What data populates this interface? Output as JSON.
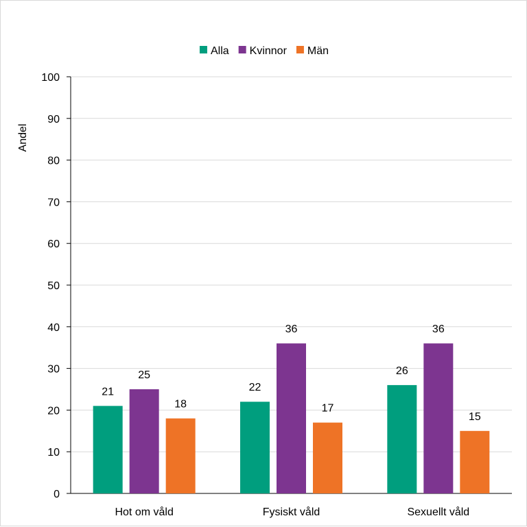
{
  "chart_data": {
    "type": "bar",
    "title": "",
    "xlabel": "",
    "ylabel": "Andel",
    "ylim": [
      0,
      100
    ],
    "yticks": [
      0,
      10,
      20,
      30,
      40,
      50,
      60,
      70,
      80,
      90,
      100
    ],
    "grid": true,
    "legend_position": "top",
    "categories": [
      "Hot om våld",
      "Fysiskt våld",
      "Sexuellt våld"
    ],
    "series": [
      {
        "name": "Alla",
        "color": "#009e7e",
        "values": [
          21,
          22,
          26
        ]
      },
      {
        "name": "Kvinnor",
        "color": "#7d3590",
        "values": [
          25,
          36,
          36
        ]
      },
      {
        "name": "Män",
        "color": "#ee7326",
        "values": [
          18,
          17,
          15
        ]
      }
    ]
  }
}
